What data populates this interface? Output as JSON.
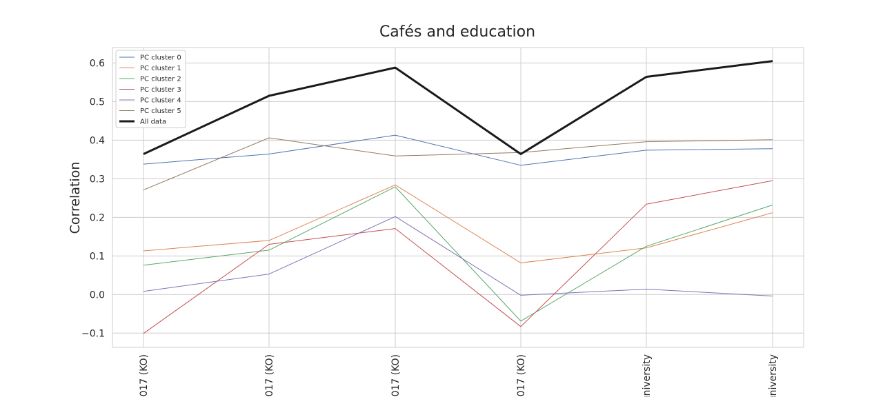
{
  "chart_data": {
    "type": "line",
    "title": "Cafés and education",
    "xlabel": "",
    "ylabel": "Correlation",
    "categories": [
      "017 (KO)",
      "017 (KO)",
      "017 (KO)",
      "017 (KO)",
      "university",
      "university"
    ],
    "ylim": [
      -0.137,
      0.64
    ],
    "yticks": [
      -0.1,
      0.0,
      0.1,
      0.2,
      0.3,
      0.4,
      0.5,
      0.6
    ],
    "ytick_labels": [
      "−0.1",
      "0.0",
      "0.1",
      "0.2",
      "0.3",
      "0.4",
      "0.5",
      "0.6"
    ],
    "grid": true,
    "legend_position": "top-left",
    "series": [
      {
        "name": "PC cluster 0",
        "color": "#4c72b0",
        "width": 1,
        "values": [
          0.338,
          0.364,
          0.413,
          0.335,
          0.374,
          0.378
        ]
      },
      {
        "name": "PC cluster 1",
        "color": "#dd8452",
        "width": 1,
        "values": [
          0.113,
          0.14,
          0.284,
          0.082,
          0.121,
          0.212
        ]
      },
      {
        "name": "PC cluster 2",
        "color": "#55a868",
        "width": 1,
        "values": [
          0.076,
          0.115,
          0.279,
          -0.069,
          0.125,
          0.232
        ]
      },
      {
        "name": "PC cluster 3",
        "color": "#c44e52",
        "width": 1,
        "values": [
          -0.101,
          0.13,
          0.171,
          -0.083,
          0.234,
          0.295
        ]
      },
      {
        "name": "PC cluster 4",
        "color": "#8172b3",
        "width": 1,
        "values": [
          0.008,
          0.053,
          0.202,
          -0.002,
          0.014,
          -0.004
        ]
      },
      {
        "name": "PC cluster 5",
        "color": "#937860",
        "width": 1,
        "values": [
          0.271,
          0.406,
          0.359,
          0.368,
          0.396,
          0.401
        ]
      },
      {
        "name": "All data",
        "color": "#1a1a1a",
        "width": 3,
        "values": [
          0.364,
          0.515,
          0.588,
          0.364,
          0.564,
          0.605
        ]
      }
    ]
  }
}
